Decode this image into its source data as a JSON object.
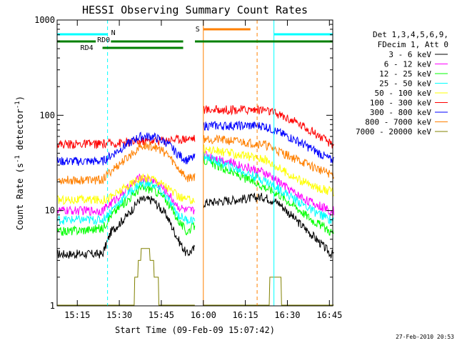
{
  "chart_data": {
    "type": "line",
    "title": "HESSI Observing Summary Count Rates",
    "xlabel": "Start Time (09-Feb-09 15:07:42)",
    "ylabel_main": "Count Rate (s",
    "ylabel_sup1": "-1",
    "ylabel_mid": " detector",
    "ylabel_sup2": "-1",
    "ylabel_end": ")",
    "yscale": "log",
    "ylim": [
      1,
      1000
    ],
    "xlim_minutes": [
      15.13,
      16.77
    ],
    "x_ticks": [
      "15:15",
      "15:30",
      "15:45",
      "16:00",
      "16:15",
      "16:30",
      "16:45"
    ],
    "y_ticks": [
      "1",
      "10",
      "100",
      "1000"
    ],
    "legend_header": [
      "Det 1,3,4,5,6,9,",
      "FDecim 1, Att 0"
    ],
    "legend_placement": "right",
    "footer_timestamp": "27-Feb-2010 20:53",
    "segments": [
      [
        15.13,
        15.95
      ],
      [
        16.0,
        16.78
      ]
    ],
    "series": [
      {
        "name": "3 - 6 keV",
        "color": "#000000",
        "values": [
          [
            15.13,
            3.5
          ],
          [
            15.4,
            3.5
          ],
          [
            15.45,
            6
          ],
          [
            15.55,
            9
          ],
          [
            15.62,
            13
          ],
          [
            15.7,
            13
          ],
          [
            15.78,
            9
          ],
          [
            15.85,
            5
          ],
          [
            15.9,
            3.5
          ],
          [
            15.95,
            4
          ],
          [
            15.99,
            12
          ],
          [
            16.36,
            14
          ],
          [
            16.45,
            12
          ],
          [
            16.55,
            8
          ],
          [
            16.65,
            5.5
          ],
          [
            16.76,
            3.5
          ]
        ]
      },
      {
        "name": "6 - 12 keV",
        "color": "#ff00ff",
        "values": [
          [
            15.13,
            10
          ],
          [
            15.4,
            10
          ],
          [
            15.45,
            12
          ],
          [
            15.55,
            17
          ],
          [
            15.62,
            22
          ],
          [
            15.7,
            21
          ],
          [
            15.78,
            16
          ],
          [
            15.85,
            11
          ],
          [
            15.9,
            10
          ],
          [
            15.95,
            10
          ],
          [
            15.99,
            40
          ],
          [
            16.36,
            25
          ],
          [
            16.45,
            20
          ],
          [
            16.55,
            15
          ],
          [
            16.65,
            12
          ],
          [
            16.76,
            10
          ]
        ]
      },
      {
        "name": "12 - 25 keV",
        "color": "#00ff00",
        "values": [
          [
            15.13,
            6
          ],
          [
            15.4,
            6.5
          ],
          [
            15.45,
            9
          ],
          [
            15.55,
            13
          ],
          [
            15.62,
            17
          ],
          [
            15.7,
            17
          ],
          [
            15.78,
            13
          ],
          [
            15.85,
            8
          ],
          [
            15.9,
            6
          ],
          [
            15.95,
            7
          ],
          [
            15.99,
            35
          ],
          [
            16.36,
            18
          ],
          [
            16.45,
            15
          ],
          [
            16.55,
            11
          ],
          [
            16.65,
            8
          ],
          [
            16.76,
            6
          ]
        ]
      },
      {
        "name": "25 - 50 keV",
        "color": "#00ffff",
        "values": [
          [
            15.13,
            8
          ],
          [
            15.4,
            8
          ],
          [
            15.45,
            10
          ],
          [
            15.55,
            15
          ],
          [
            15.62,
            19
          ],
          [
            15.7,
            19
          ],
          [
            15.78,
            14
          ],
          [
            15.85,
            9
          ],
          [
            15.9,
            8
          ],
          [
            15.95,
            8
          ],
          [
            15.99,
            38
          ],
          [
            16.36,
            21
          ],
          [
            16.45,
            17
          ],
          [
            16.55,
            13
          ],
          [
            16.65,
            10
          ],
          [
            16.76,
            8
          ]
        ]
      },
      {
        "name": "50 - 100 keV",
        "color": "#ffff00",
        "values": [
          [
            15.13,
            13
          ],
          [
            15.4,
            13
          ],
          [
            15.45,
            14
          ],
          [
            15.55,
            18
          ],
          [
            15.62,
            22
          ],
          [
            15.7,
            22
          ],
          [
            15.78,
            18
          ],
          [
            15.85,
            14
          ],
          [
            15.9,
            13
          ],
          [
            15.95,
            13
          ],
          [
            15.99,
            45
          ],
          [
            16.36,
            35
          ],
          [
            16.45,
            28
          ],
          [
            16.55,
            22
          ],
          [
            16.65,
            18
          ],
          [
            16.76,
            16
          ]
        ]
      },
      {
        "name": "100 - 300 keV",
        "color": "#ff0000",
        "values": [
          [
            15.13,
            50
          ],
          [
            15.4,
            50
          ],
          [
            15.95,
            58
          ],
          [
            15.99,
            115
          ],
          [
            16.36,
            115
          ],
          [
            16.45,
            102
          ],
          [
            16.55,
            85
          ],
          [
            16.65,
            68
          ],
          [
            16.76,
            50
          ]
        ]
      },
      {
        "name": "300 - 800 keV",
        "color": "#0000ff",
        "values": [
          [
            15.13,
            33
          ],
          [
            15.4,
            33
          ],
          [
            15.45,
            38
          ],
          [
            15.55,
            50
          ],
          [
            15.62,
            60
          ],
          [
            15.7,
            60
          ],
          [
            15.78,
            52
          ],
          [
            15.85,
            39
          ],
          [
            15.9,
            34
          ],
          [
            15.95,
            36
          ],
          [
            15.99,
            78
          ],
          [
            16.36,
            78
          ],
          [
            16.45,
            66
          ],
          [
            16.55,
            55
          ],
          [
            16.65,
            44
          ],
          [
            16.76,
            34
          ]
        ]
      },
      {
        "name": "800 - 7000 keV",
        "color": "#ff8000",
        "values": [
          [
            15.13,
            21
          ],
          [
            15.4,
            21
          ],
          [
            15.45,
            26
          ],
          [
            15.55,
            36
          ],
          [
            15.62,
            47
          ],
          [
            15.7,
            48
          ],
          [
            15.78,
            40
          ],
          [
            15.85,
            28
          ],
          [
            15.9,
            22
          ],
          [
            15.95,
            23
          ],
          [
            15.99,
            58
          ],
          [
            16.36,
            50
          ],
          [
            16.45,
            42
          ],
          [
            16.55,
            35
          ],
          [
            16.65,
            29
          ],
          [
            16.76,
            24
          ]
        ]
      },
      {
        "name": "7000 - 20000 keV",
        "color": "#808000",
        "values": [
          [
            15.13,
            1
          ],
          [
            15.58,
            1
          ],
          [
            15.6,
            2
          ],
          [
            15.63,
            3.5
          ],
          [
            15.68,
            3.5
          ],
          [
            15.72,
            2
          ],
          [
            15.75,
            1
          ],
          [
            15.95,
            1
          ],
          [
            16.36,
            1
          ],
          [
            16.42,
            2
          ],
          [
            16.5,
            1.2
          ],
          [
            16.76,
            1
          ]
        ]
      }
    ],
    "annotations": {
      "flags": [
        {
          "label": "N",
          "color": "#00ffff",
          "segments": [
            [
              15.13,
              15.43
            ],
            [
              16.42,
              16.77
            ]
          ]
        },
        {
          "label": "RD0",
          "color": "#008000",
          "segments": [
            [
              15.13,
              15.36
            ],
            [
              15.45,
              15.88
            ],
            [
              15.95,
              16.77
            ]
          ]
        },
        {
          "label": "RD4",
          "color": "#008000",
          "segments": [
            [
              15.4,
              15.88
            ]
          ]
        },
        {
          "label": "S",
          "color": "#ff8000",
          "segments": [
            [
              16.0,
              16.28
            ]
          ]
        }
      ],
      "vlines": [
        {
          "x": 15.13,
          "color": "#00ffff",
          "style": "solid"
        },
        {
          "x": 15.43,
          "color": "#00ffff",
          "style": "dashed"
        },
        {
          "x": 16.0,
          "color": "#ff8000",
          "style": "solid"
        },
        {
          "x": 16.32,
          "color": "#ff8000",
          "style": "dashed"
        },
        {
          "x": 16.42,
          "color": "#00ffff",
          "style": "solid"
        },
        {
          "x": 16.77,
          "color": "#00ffff",
          "style": "dashed"
        }
      ]
    }
  }
}
